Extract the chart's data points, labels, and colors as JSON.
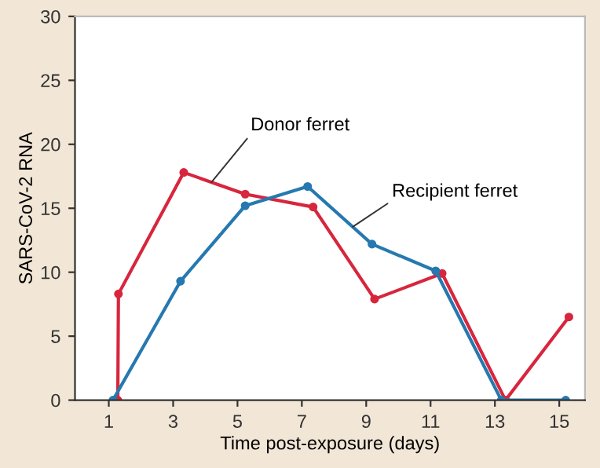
{
  "chart_data": {
    "type": "line",
    "xlabel": "Time post-exposure (days)",
    "ylabel": "SARS-CoV-2 RNA",
    "xlim": [
      -0.05,
      15.8
    ],
    "ylim": [
      0,
      30
    ],
    "xticks": [
      1,
      3,
      5,
      7,
      9,
      11,
      13,
      15
    ],
    "yticks": [
      0,
      5,
      10,
      15,
      20,
      25,
      30
    ],
    "grid": false,
    "legend": false,
    "marker": "circle",
    "line_style": "solid",
    "series": [
      {
        "name": "Donor ferret",
        "color": "#d7263d",
        "x": [
          1.28,
          1.3,
          3.33,
          5.24,
          7.35,
          9.26,
          11.36,
          13.33,
          15.3
        ],
        "values": [
          0,
          8.3,
          17.8,
          16.1,
          15.1,
          7.9,
          9.9,
          0,
          6.5
        ]
      },
      {
        "name": "Recipient ferret",
        "color": "#2679b0",
        "x": [
          1.13,
          3.23,
          5.24,
          7.18,
          9.18,
          11.16,
          13.2,
          15.2
        ],
        "values": [
          0,
          9.3,
          15.2,
          16.7,
          12.2,
          10.1,
          0,
          0
        ]
      }
    ]
  }
}
